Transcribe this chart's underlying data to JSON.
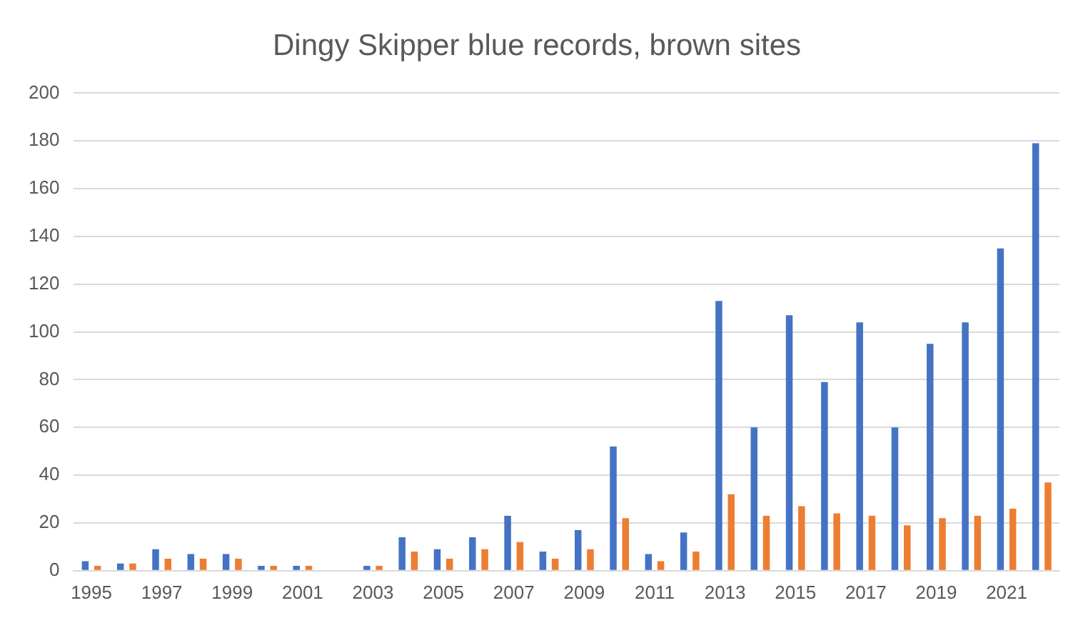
{
  "chart_data": {
    "type": "bar",
    "title": "Dingy Skipper blue records, brown sites",
    "categories": [
      "1995",
      null,
      "1997",
      null,
      "1999",
      null,
      "2001",
      null,
      "2003",
      null,
      "2005",
      null,
      "2007",
      null,
      "2009",
      null,
      "2011",
      null,
      "2013",
      null,
      "2015",
      null,
      "2017",
      null,
      "2019",
      null,
      "2021",
      null
    ],
    "series": [
      {
        "color": "#4472c4",
        "values": [
          4,
          3,
          9,
          7,
          7,
          2,
          2,
          0,
          2,
          14,
          9,
          14,
          23,
          8,
          17,
          52,
          7,
          16,
          113,
          60,
          107,
          79,
          104,
          60,
          95,
          104,
          135,
          179
        ]
      },
      {
        "color": "#ed7d31",
        "values": [
          2,
          3,
          5,
          5,
          5,
          2,
          2,
          0,
          2,
          8,
          5,
          9,
          12,
          5,
          9,
          22,
          4,
          8,
          32,
          23,
          27,
          24,
          23,
          19,
          22,
          23,
          26,
          37
        ]
      }
    ],
    "ylim": [
      0,
      200
    ],
    "yticks": [
      0,
      20,
      40,
      60,
      80,
      100,
      120,
      140,
      160,
      180,
      200
    ],
    "grid": "y",
    "legend": false
  }
}
